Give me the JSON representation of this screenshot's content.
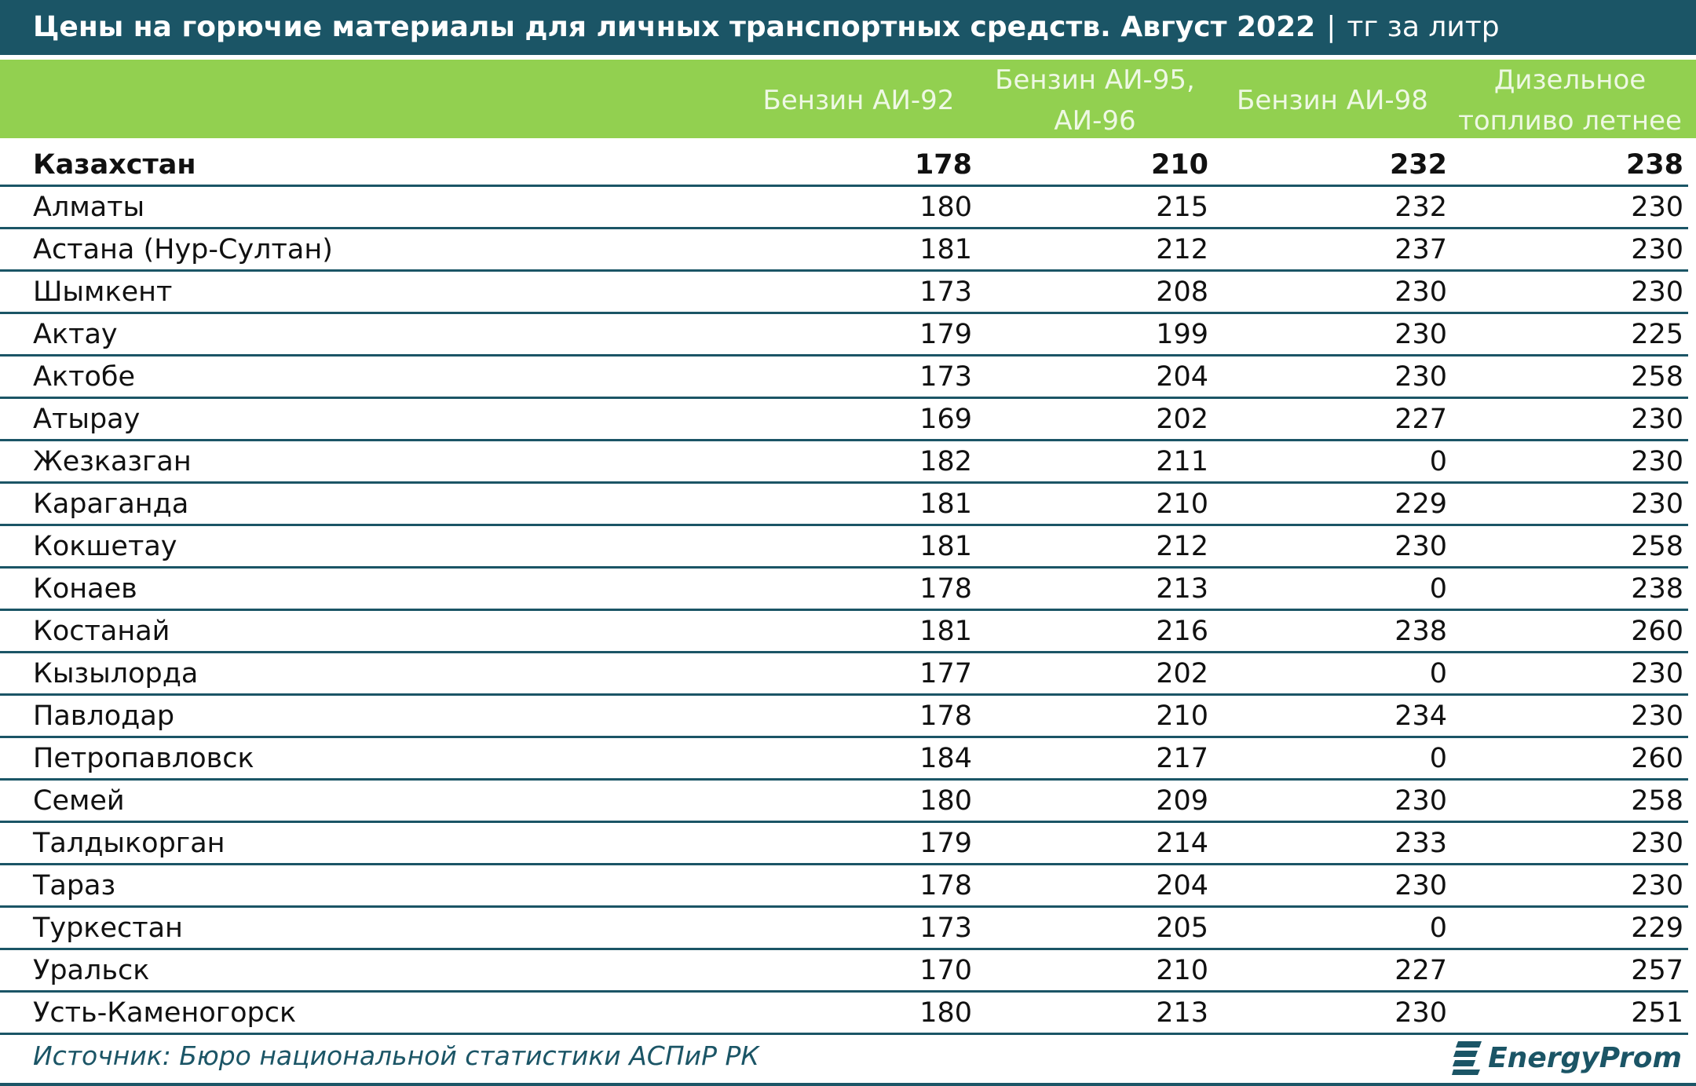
{
  "header": {
    "title": "Цены на горючие материалы для личных транспортных средств. Август 2022",
    "separator": "|",
    "unit": "тг за литр"
  },
  "table": {
    "columns": [
      "Бензин АИ-92",
      "Бензин АИ-95, АИ-96",
      "Бензин АИ-98",
      "Дизельное топливо летнее"
    ],
    "rows": [
      [
        "Казахстан",
        178,
        210,
        232,
        238
      ],
      [
        "Алматы",
        180,
        215,
        232,
        230
      ],
      [
        "Астана (Нур-Султан)",
        181,
        212,
        237,
        230
      ],
      [
        "Шымкент",
        173,
        208,
        230,
        230
      ],
      [
        "Актау",
        179,
        199,
        230,
        225
      ],
      [
        "Актобе",
        173,
        204,
        230,
        258
      ],
      [
        "Атырау",
        169,
        202,
        227,
        230
      ],
      [
        "Жезказган",
        182,
        211,
        0,
        230
      ],
      [
        "Караганда",
        181,
        210,
        229,
        230
      ],
      [
        "Кокшетау",
        181,
        212,
        230,
        258
      ],
      [
        "Конаев",
        178,
        213,
        0,
        238
      ],
      [
        "Костанай",
        181,
        216,
        238,
        260
      ],
      [
        "Кызылорда",
        177,
        202,
        0,
        230
      ],
      [
        "Павлодар",
        178,
        210,
        234,
        230
      ],
      [
        "Петропавловск",
        184,
        217,
        0,
        260
      ],
      [
        "Семей",
        180,
        209,
        230,
        258
      ],
      [
        "Талдыкорган",
        179,
        214,
        233,
        230
      ],
      [
        "Тараз",
        178,
        204,
        230,
        230
      ],
      [
        "Туркестан",
        173,
        205,
        0,
        229
      ],
      [
        "Уральск",
        170,
        210,
        227,
        257
      ],
      [
        "Усть-Каменогорск",
        180,
        213,
        230,
        251
      ]
    ]
  },
  "footer": {
    "source": "Источник: Бюро национальной статистики АСПиР РК",
    "logo": "EnergyProm"
  }
}
